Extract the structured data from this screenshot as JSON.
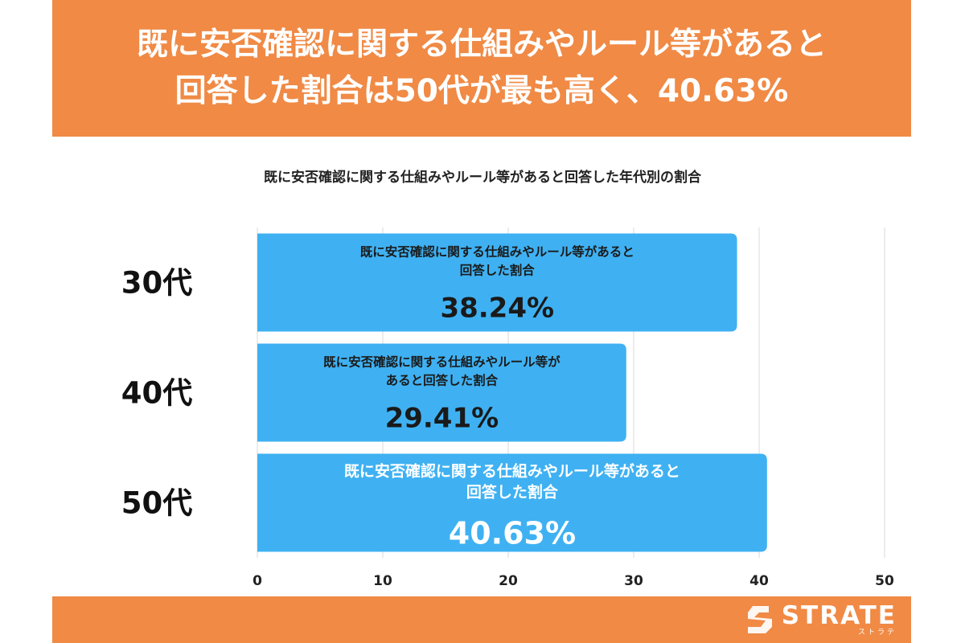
{
  "header": {
    "line1": "既に安否確認に関する仕組みやルール等があると",
    "line2": "回答した割合は50代が最も高く、40.63%"
  },
  "colors": {
    "header_bg": "#f08a45",
    "bar": "#3fb1f2",
    "grid": "#d9d9d9",
    "text": "#222222"
  },
  "chart_data": {
    "type": "bar",
    "orientation": "horizontal",
    "title": "既に安否確認に関する仕組みやルール等があると回答した年代別の割合",
    "categories": [
      "30代",
      "40代",
      "50代"
    ],
    "values": [
      38.24,
      29.41,
      40.63
    ],
    "value_labels": [
      "38.24%",
      "29.41%",
      "40.63%"
    ],
    "bar_labels": [
      [
        "既に安否確認に関する仕組みやルール等があると",
        "回答した割合"
      ],
      [
        "既に安否確認に関する仕組みやルール等が",
        "あると回答した割合"
      ],
      [
        "既に安否確認に関する仕組みやルール等があると",
        "回答した割合"
      ]
    ],
    "xlim": [
      0,
      50
    ],
    "xticks": [
      0,
      10,
      20,
      30,
      40,
      50
    ],
    "grid": true,
    "legend": "none"
  },
  "footer": {
    "logo_text": "STRATE",
    "logo_sub": "ストラテ"
  }
}
